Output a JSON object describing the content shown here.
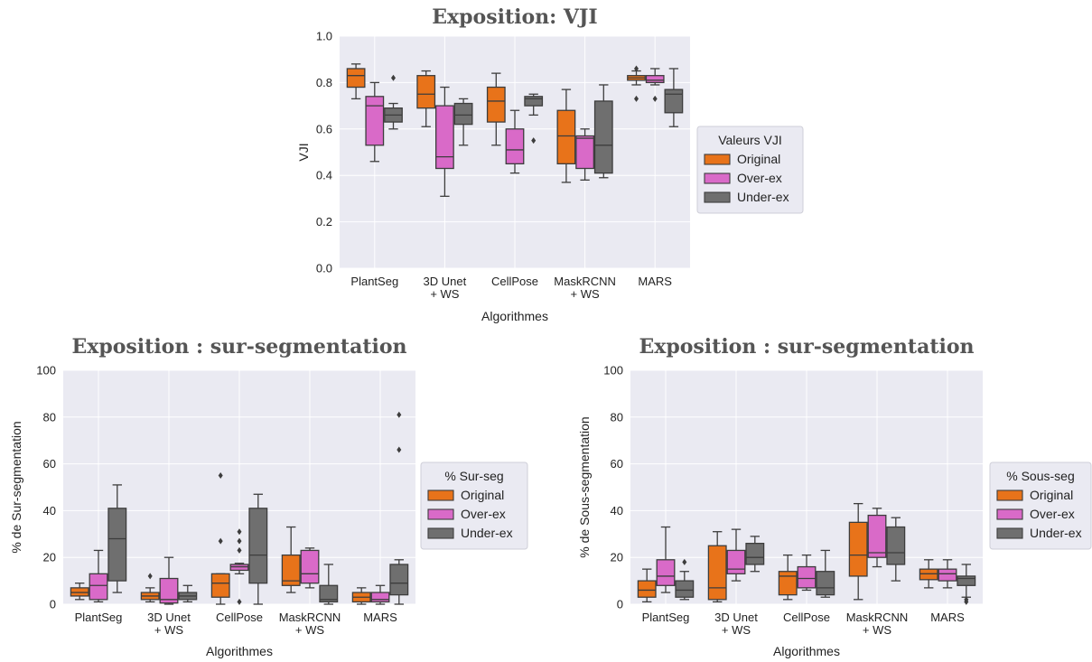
{
  "series_colors": {
    "Original": "#e8731a",
    "Over-ex": "#d96ac8",
    "Under-ex": "#6f6f6f"
  },
  "chart_data": [
    {
      "type": "box",
      "title": "Exposition: VJI",
      "xlabel": "Algorithmes",
      "ylabel": "VJI",
      "ylim": [
        0,
        1
      ],
      "yticks": [
        0,
        0.2,
        0.4,
        0.6,
        0.8,
        1.0
      ],
      "ytick_labels": [
        "0.0",
        "0.2",
        "0.4",
        "0.6",
        "0.8",
        "1.0"
      ],
      "grid": true,
      "legend_title": "Valeurs VJI",
      "legend_placement": "right",
      "categories": [
        [
          "PlantSeg"
        ],
        [
          "3D Unet",
          "+ WS"
        ],
        [
          "CellPose"
        ],
        [
          "MaskRCNN",
          "+ WS"
        ],
        [
          "MARS"
        ]
      ],
      "series": [
        {
          "name": "Original",
          "boxes": [
            {
              "whislo": 0.73,
              "q1": 0.78,
              "med": 0.83,
              "q3": 0.86,
              "whishi": 0.88,
              "fliers": []
            },
            {
              "whislo": 0.61,
              "q1": 0.69,
              "med": 0.75,
              "q3": 0.83,
              "whishi": 0.85,
              "fliers": []
            },
            {
              "whislo": 0.53,
              "q1": 0.63,
              "med": 0.72,
              "q3": 0.78,
              "whishi": 0.84,
              "fliers": []
            },
            {
              "whislo": 0.37,
              "q1": 0.45,
              "med": 0.57,
              "q3": 0.68,
              "whishi": 0.77,
              "fliers": []
            },
            {
              "whislo": 0.79,
              "q1": 0.81,
              "med": 0.82,
              "q3": 0.83,
              "whishi": 0.85,
              "fliers": [
                0.86,
                0.73
              ]
            }
          ]
        },
        {
          "name": "Over-ex",
          "boxes": [
            {
              "whislo": 0.46,
              "q1": 0.53,
              "med": 0.7,
              "q3": 0.74,
              "whishi": 0.8,
              "fliers": []
            },
            {
              "whislo": 0.31,
              "q1": 0.43,
              "med": 0.48,
              "q3": 0.7,
              "whishi": 0.78,
              "fliers": []
            },
            {
              "whislo": 0.41,
              "q1": 0.45,
              "med": 0.51,
              "q3": 0.6,
              "whishi": 0.68,
              "fliers": []
            },
            {
              "whislo": 0.38,
              "q1": 0.43,
              "med": 0.56,
              "q3": 0.57,
              "whishi": 0.6,
              "fliers": []
            },
            {
              "whislo": 0.79,
              "q1": 0.8,
              "med": 0.81,
              "q3": 0.83,
              "whishi": 0.86,
              "fliers": [
                0.73
              ]
            }
          ]
        },
        {
          "name": "Under-ex",
          "boxes": [
            {
              "whislo": 0.6,
              "q1": 0.63,
              "med": 0.66,
              "q3": 0.69,
              "whishi": 0.71,
              "fliers": [
                0.82
              ]
            },
            {
              "whislo": 0.53,
              "q1": 0.62,
              "med": 0.66,
              "q3": 0.71,
              "whishi": 0.73,
              "fliers": []
            },
            {
              "whislo": 0.66,
              "q1": 0.7,
              "med": 0.73,
              "q3": 0.74,
              "whishi": 0.75,
              "fliers": [
                0.55
              ]
            },
            {
              "whislo": 0.39,
              "q1": 0.41,
              "med": 0.53,
              "q3": 0.72,
              "whishi": 0.79,
              "fliers": []
            },
            {
              "whislo": 0.61,
              "q1": 0.67,
              "med": 0.75,
              "q3": 0.77,
              "whishi": 0.86,
              "fliers": []
            }
          ]
        }
      ]
    },
    {
      "type": "box",
      "title": "Exposition : sur-segmentation",
      "xlabel": "Algorithmes",
      "ylabel": "% de Sur-segmentation",
      "ylim": [
        0,
        100
      ],
      "yticks": [
        0,
        20,
        40,
        60,
        80,
        100
      ],
      "ytick_labels": [
        "0",
        "20",
        "40",
        "60",
        "80",
        "100"
      ],
      "grid": true,
      "legend_title": "% Sur-seg",
      "legend_placement": "right",
      "categories": [
        [
          "PlantSeg"
        ],
        [
          "3D Unet",
          "+ WS"
        ],
        [
          "CellPose"
        ],
        [
          "MaskRCNN",
          "+ WS"
        ],
        [
          "MARS"
        ]
      ],
      "series": [
        {
          "name": "Original",
          "boxes": [
            {
              "whislo": 2,
              "q1": 3.5,
              "med": 5,
              "q3": 7,
              "whishi": 9,
              "fliers": []
            },
            {
              "whislo": 1,
              "q1": 2,
              "med": 3.5,
              "q3": 5,
              "whishi": 7,
              "fliers": [
                12
              ]
            },
            {
              "whislo": 0,
              "q1": 3,
              "med": 9,
              "q3": 13,
              "whishi": 13,
              "fliers": [
                55,
                27
              ]
            },
            {
              "whislo": 5,
              "q1": 8,
              "med": 10,
              "q3": 21,
              "whishi": 33,
              "fliers": []
            },
            {
              "whislo": 0,
              "q1": 1,
              "med": 3,
              "q3": 5,
              "whishi": 7,
              "fliers": []
            }
          ]
        },
        {
          "name": "Over-ex",
          "boxes": [
            {
              "whislo": 1,
              "q1": 2,
              "med": 8,
              "q3": 13,
              "whishi": 23,
              "fliers": []
            },
            {
              "whislo": 0,
              "q1": 0.5,
              "med": 2,
              "q3": 11,
              "whishi": 20,
              "fliers": []
            },
            {
              "whislo": 13,
              "q1": 14.5,
              "med": 16,
              "q3": 17,
              "whishi": 17.5,
              "fliers": [
                31,
                27,
                23,
                1
              ]
            },
            {
              "whislo": 7,
              "q1": 9,
              "med": 13,
              "q3": 23,
              "whishi": 24,
              "fliers": []
            },
            {
              "whislo": 0,
              "q1": 1,
              "med": 2,
              "q3": 5,
              "whishi": 8,
              "fliers": []
            }
          ]
        },
        {
          "name": "Under-ex",
          "boxes": [
            {
              "whislo": 5,
              "q1": 10,
              "med": 28,
              "q3": 41,
              "whishi": 51,
              "fliers": []
            },
            {
              "whislo": 1,
              "q1": 2,
              "med": 3.5,
              "q3": 5,
              "whishi": 8,
              "fliers": []
            },
            {
              "whislo": 0,
              "q1": 9,
              "med": 21,
              "q3": 41,
              "whishi": 47,
              "fliers": []
            },
            {
              "whislo": 0,
              "q1": 1,
              "med": 2,
              "q3": 8,
              "whishi": 17,
              "fliers": []
            },
            {
              "whislo": 0,
              "q1": 4,
              "med": 9,
              "q3": 17,
              "whishi": 19,
              "fliers": [
                81,
                66
              ]
            }
          ]
        }
      ]
    },
    {
      "type": "box",
      "title": "Exposition : sur-segmentation",
      "xlabel": "Algorithmes",
      "ylabel": "% de Sous-segmentation",
      "ylim": [
        0,
        100
      ],
      "yticks": [
        0,
        20,
        40,
        60,
        80,
        100
      ],
      "ytick_labels": [
        "0",
        "20",
        "40",
        "60",
        "80",
        "100"
      ],
      "grid": true,
      "legend_title": "% Sous-seg",
      "legend_placement": "right",
      "categories": [
        [
          "PlantSeg"
        ],
        [
          "3D Unet",
          "+ WS"
        ],
        [
          "CellPose"
        ],
        [
          "MaskRCNN",
          "+ WS"
        ],
        [
          "MARS"
        ]
      ],
      "series": [
        {
          "name": "Original",
          "boxes": [
            {
              "whislo": 1,
              "q1": 3,
              "med": 6,
              "q3": 10,
              "whishi": 15,
              "fliers": []
            },
            {
              "whislo": 1,
              "q1": 2,
              "med": 7,
              "q3": 25,
              "whishi": 31,
              "fliers": []
            },
            {
              "whislo": 2,
              "q1": 4,
              "med": 12,
              "q3": 14,
              "whishi": 21,
              "fliers": []
            },
            {
              "whislo": 2,
              "q1": 12,
              "med": 21,
              "q3": 35,
              "whishi": 43,
              "fliers": []
            },
            {
              "whislo": 7,
              "q1": 10.5,
              "med": 13,
              "q3": 15,
              "whishi": 19,
              "fliers": []
            }
          ]
        },
        {
          "name": "Over-ex",
          "boxes": [
            {
              "whislo": 5,
              "q1": 8,
              "med": 12,
              "q3": 19,
              "whishi": 33,
              "fliers": []
            },
            {
              "whislo": 10,
              "q1": 13,
              "med": 15,
              "q3": 23,
              "whishi": 32,
              "fliers": []
            },
            {
              "whislo": 6,
              "q1": 7,
              "med": 11,
              "q3": 16,
              "whishi": 21,
              "fliers": []
            },
            {
              "whislo": 16,
              "q1": 20,
              "med": 22,
              "q3": 38,
              "whishi": 41,
              "fliers": []
            },
            {
              "whislo": 7,
              "q1": 10,
              "med": 13,
              "q3": 15,
              "whishi": 19,
              "fliers": []
            }
          ]
        },
        {
          "name": "Under-ex",
          "boxes": [
            {
              "whislo": 2,
              "q1": 3,
              "med": 6,
              "q3": 10,
              "whishi": 14,
              "fliers": [
                18
              ]
            },
            {
              "whislo": 14,
              "q1": 17,
              "med": 20,
              "q3": 26,
              "whishi": 29,
              "fliers": []
            },
            {
              "whislo": 3,
              "q1": 4,
              "med": 7,
              "q3": 14,
              "whishi": 23,
              "fliers": []
            },
            {
              "whislo": 10,
              "q1": 17,
              "med": 22,
              "q3": 33,
              "whishi": 37,
              "fliers": []
            },
            {
              "whislo": 3,
              "q1": 8,
              "med": 11,
              "q3": 12,
              "whishi": 17,
              "fliers": [
                2,
                1
              ]
            }
          ]
        }
      ]
    }
  ]
}
